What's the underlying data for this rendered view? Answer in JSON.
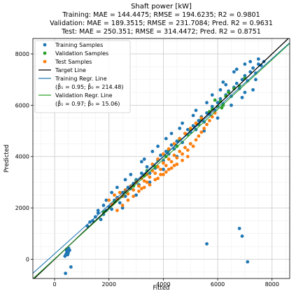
{
  "chart_data": {
    "type": "scatter",
    "title_lines": [
      "Shaft power [kW]",
      "Training: MAE = 144.4475; RMSE = 194.6235; R2 = 0.9801",
      "Validation: MAE = 189.3515; RMSE = 231.7084; Pred. R2 = 0.9631",
      "Test: MAE = 250.351; RMSE = 314.4472; Pred. R2 = 0.8751"
    ],
    "xlabel": "Fitted",
    "ylabel": "Predicted",
    "xlim": [
      -800,
      8650
    ],
    "ylim": [
      -750,
      8600
    ],
    "xticks": [
      0,
      2000,
      4000,
      6000,
      8000
    ],
    "yticks": [
      0,
      2000,
      4000,
      6000,
      8000
    ],
    "grid": true,
    "legend_position": "upper left",
    "colors": {
      "training": "#1f77b4",
      "validation": "#2ca02c",
      "test": "#ff7f0e",
      "target": "#000000"
    },
    "series": [
      {
        "name": "Training Samples",
        "kind": "scatter",
        "color": "#1f77b4",
        "points": [
          [
            400,
            -550
          ],
          [
            420,
            200
          ],
          [
            450,
            300
          ],
          [
            500,
            250
          ],
          [
            550,
            350
          ],
          [
            520,
            420
          ],
          [
            480,
            180
          ],
          [
            430,
            380
          ],
          [
            600,
            -300
          ],
          [
            380,
            120
          ],
          [
            1400,
            1500
          ],
          [
            1500,
            1650
          ],
          [
            1600,
            1800
          ],
          [
            1700,
            1550
          ],
          [
            1800,
            1750
          ],
          [
            1900,
            1900
          ],
          [
            2000,
            2050
          ],
          [
            2100,
            1950
          ],
          [
            2200,
            2300
          ],
          [
            2300,
            2400
          ],
          [
            2400,
            2200
          ],
          [
            2500,
            2600
          ],
          [
            2600,
            2450
          ],
          [
            2700,
            2800
          ],
          [
            2800,
            2750
          ],
          [
            2900,
            2950
          ],
          [
            3000,
            3100
          ],
          [
            3100,
            2900
          ],
          [
            3200,
            3350
          ],
          [
            3300,
            3250
          ],
          [
            3400,
            3600
          ],
          [
            3500,
            3350
          ],
          [
            3600,
            3700
          ],
          [
            3700,
            3550
          ],
          [
            3800,
            3900
          ],
          [
            3900,
            4050
          ],
          [
            4000,
            3850
          ],
          [
            4100,
            4200
          ],
          [
            4200,
            4100
          ],
          [
            4300,
            4450
          ],
          [
            4400,
            4300
          ],
          [
            4500,
            4600
          ],
          [
            4600,
            4700
          ],
          [
            4700,
            4550
          ],
          [
            4800,
            4900
          ],
          [
            4900,
            5050
          ],
          [
            5000,
            4950
          ],
          [
            5100,
            5200
          ],
          [
            5200,
            5050
          ],
          [
            5300,
            5400
          ],
          [
            5400,
            5550
          ],
          [
            5500,
            5350
          ],
          [
            5600,
            5700
          ],
          [
            5700,
            5650
          ],
          [
            5800,
            5950
          ],
          [
            5900,
            5800
          ],
          [
            6000,
            6100
          ],
          [
            6100,
            6250
          ],
          [
            6200,
            6050
          ],
          [
            6300,
            6400
          ],
          [
            6400,
            6550
          ],
          [
            6500,
            6350
          ],
          [
            6600,
            6700
          ],
          [
            6700,
            6850
          ],
          [
            6800,
            6650
          ],
          [
            6900,
            7000
          ],
          [
            7000,
            7150
          ],
          [
            7100,
            6950
          ],
          [
            7200,
            7300
          ],
          [
            7300,
            7450
          ],
          [
            7400,
            7250
          ],
          [
            7500,
            7600
          ],
          [
            7600,
            7550
          ],
          [
            7700,
            7700
          ],
          [
            7000,
            7600
          ],
          [
            6600,
            7300
          ],
          [
            6200,
            6900
          ],
          [
            7300,
            6600
          ],
          [
            6900,
            6300
          ],
          [
            5800,
            6400
          ],
          [
            5200,
            5800
          ],
          [
            4700,
            5300
          ],
          [
            4300,
            4900
          ],
          [
            3800,
            4400
          ],
          [
            3300,
            3900
          ],
          [
            2800,
            3300
          ],
          [
            2300,
            2800
          ],
          [
            1900,
            2300
          ],
          [
            1600,
            1900
          ],
          [
            2500,
            2000
          ],
          [
            3000,
            2500
          ],
          [
            3500,
            3000
          ],
          [
            4000,
            3500
          ],
          [
            4500,
            4000
          ],
          [
            5000,
            4500
          ],
          [
            5500,
            5000
          ],
          [
            6000,
            5500
          ],
          [
            6500,
            6000
          ],
          [
            7000,
            6500
          ],
          [
            7400,
            7000
          ],
          [
            1200,
            1300
          ],
          [
            1300,
            1450
          ],
          [
            6800,
            1200
          ],
          [
            6900,
            900
          ],
          [
            7100,
            -100
          ],
          [
            5600,
            600
          ],
          [
            6300,
            6800
          ],
          [
            6700,
            7400
          ],
          [
            7200,
            7700
          ],
          [
            3200,
            3800
          ],
          [
            3600,
            4200
          ],
          [
            4100,
            4700
          ],
          [
            4600,
            5100
          ],
          [
            5100,
            5600
          ],
          [
            5600,
            6100
          ],
          [
            6100,
            6600
          ],
          [
            2600,
            3100
          ],
          [
            2100,
            2600
          ],
          [
            1800,
            2100
          ],
          [
            7500,
            7800
          ]
        ]
      },
      {
        "name": "Validation Samples",
        "kind": "scatter",
        "color": "#2ca02c",
        "points": [
          [
            1800,
            1850
          ],
          [
            2200,
            2250
          ],
          [
            2600,
            2650
          ],
          [
            3000,
            3050
          ],
          [
            3400,
            3450
          ],
          [
            3800,
            3850
          ],
          [
            4200,
            4250
          ],
          [
            4600,
            4650
          ],
          [
            5000,
            5050
          ],
          [
            5400,
            5450
          ],
          [
            5800,
            5850
          ],
          [
            6100,
            6150
          ],
          [
            6200,
            6000
          ],
          [
            6300,
            6350
          ],
          [
            6400,
            6500
          ],
          [
            6000,
            5950
          ],
          [
            5700,
            5750
          ],
          [
            5300,
            5250
          ],
          [
            4900,
            4850
          ],
          [
            4500,
            4400
          ],
          [
            4100,
            4000
          ],
          [
            3700,
            3600
          ],
          [
            3300,
            3250
          ],
          [
            2900,
            2850
          ],
          [
            2500,
            2450
          ],
          [
            6600,
            6650
          ],
          [
            6800,
            6750
          ],
          [
            7000,
            7050
          ],
          [
            5900,
            6200
          ],
          [
            6150,
            5900
          ]
        ]
      },
      {
        "name": "Test Samples",
        "kind": "scatter",
        "color": "#ff7f0e",
        "points": [
          [
            2000,
            2300
          ],
          [
            2100,
            2150
          ],
          [
            2200,
            2500
          ],
          [
            2300,
            2350
          ],
          [
            2400,
            2600
          ],
          [
            2500,
            2450
          ],
          [
            2600,
            2700
          ],
          [
            2700,
            2550
          ],
          [
            2800,
            2850
          ],
          [
            2900,
            2700
          ],
          [
            3000,
            3000
          ],
          [
            3100,
            2850
          ],
          [
            3200,
            3150
          ],
          [
            3300,
            3050
          ],
          [
            3400,
            3300
          ],
          [
            3500,
            3200
          ],
          [
            3600,
            3450
          ],
          [
            3700,
            3350
          ],
          [
            3800,
            3600
          ],
          [
            3900,
            3500
          ],
          [
            4000,
            3750
          ],
          [
            4100,
            3650
          ],
          [
            4200,
            3900
          ],
          [
            4300,
            3800
          ],
          [
            4400,
            4050
          ],
          [
            4500,
            3950
          ],
          [
            4600,
            4200
          ],
          [
            4700,
            4100
          ],
          [
            4800,
            4350
          ],
          [
            4900,
            4250
          ],
          [
            5000,
            4500
          ],
          [
            5100,
            4400
          ],
          [
            5200,
            4650
          ],
          [
            5300,
            4800
          ],
          [
            5400,
            4950
          ],
          [
            5500,
            5100
          ],
          [
            5600,
            5250
          ],
          [
            5700,
            5400
          ],
          [
            5800,
            5550
          ],
          [
            5900,
            5700
          ],
          [
            3500,
            2900
          ],
          [
            3700,
            3100
          ],
          [
            3900,
            3300
          ],
          [
            4100,
            3400
          ],
          [
            4300,
            3550
          ],
          [
            4500,
            3700
          ],
          [
            4700,
            3850
          ],
          [
            4900,
            4000
          ],
          [
            3300,
            2800
          ],
          [
            3100,
            2650
          ],
          [
            2300,
            1900
          ],
          [
            2500,
            2100
          ],
          [
            2700,
            2300
          ],
          [
            2900,
            2450
          ],
          [
            3600,
            3700
          ],
          [
            3800,
            3900
          ],
          [
            4000,
            4100
          ],
          [
            4200,
            4300
          ],
          [
            4400,
            4500
          ],
          [
            4600,
            4700
          ],
          [
            4800,
            4900
          ],
          [
            5000,
            5100
          ],
          [
            5200,
            5300
          ],
          [
            5400,
            5500
          ],
          [
            3400,
            3000
          ],
          [
            3200,
            2750
          ],
          [
            4200,
            3500
          ],
          [
            4400,
            3650
          ],
          [
            4000,
            3300
          ],
          [
            3800,
            3150
          ]
        ]
      },
      {
        "name": "Target Line",
        "kind": "line",
        "color": "#000000",
        "slope": 1.0,
        "intercept": 0
      },
      {
        "name": "Training Regr. Line",
        "kind": "line",
        "color": "#1f77b4",
        "slope": 0.95,
        "intercept": 214.48
      },
      {
        "name": "Validation Regr. Line",
        "kind": "line",
        "color": "#2ca02c",
        "slope": 0.97,
        "intercept": 15.06
      }
    ],
    "legend": [
      {
        "label": "Training Samples",
        "marker": "dot",
        "color": "#1f77b4"
      },
      {
        "label": "Validation Samples",
        "marker": "dot",
        "color": "#2ca02c"
      },
      {
        "label": "Test Samples",
        "marker": "dot",
        "color": "#ff7f0e"
      },
      {
        "label": "Target Line",
        "marker": "line",
        "color": "#000000"
      },
      {
        "label": "Training Regr. Line",
        "sublabel": "(β̂₁ = 0.95; β̂₀ = 214.48)",
        "marker": "line",
        "color": "#1f77b4"
      },
      {
        "label": "Validation Regr. Line",
        "sublabel": "(β̂₁ = 0.97; β̂₀ = 15.06)",
        "marker": "line",
        "color": "#2ca02c"
      }
    ]
  }
}
